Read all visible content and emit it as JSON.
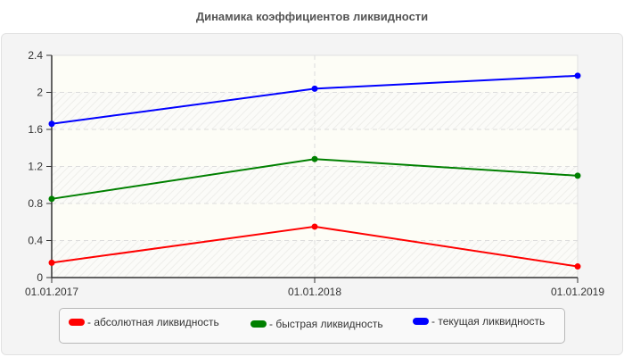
{
  "title": "Динамика коэффициентов ликвидности",
  "chart_data": {
    "type": "line",
    "title": "Динамика коэффициентов ликвидности",
    "xlabel": "",
    "ylabel": "",
    "categories": [
      "01.01.2017",
      "01.01.2018",
      "01.01.2019"
    ],
    "series": [
      {
        "name": "абсолютная ликвидность",
        "color": "#ff0000",
        "values": [
          0.16,
          0.55,
          0.12
        ]
      },
      {
        "name": "быстрая ликвидность",
        "color": "#008000",
        "values": [
          0.85,
          1.28,
          1.1
        ]
      },
      {
        "name": "текущая ликвидность",
        "color": "#0000ff",
        "values": [
          1.66,
          2.04,
          2.18
        ]
      }
    ],
    "ylim": [
      0,
      2.4
    ],
    "yticks": [
      "0",
      "0.4",
      "0.8",
      "1.2",
      "1.6",
      "2",
      "2.4"
    ],
    "grid": true,
    "legend_position": "bottom"
  },
  "legend": [
    {
      "label": "- абсолютная ликвидность",
      "color": "#ff0000"
    },
    {
      "label": "- быстрая ликвидность",
      "color": "#008000"
    },
    {
      "label": "- текущая ликвидность",
      "color": "#0000ff"
    }
  ]
}
